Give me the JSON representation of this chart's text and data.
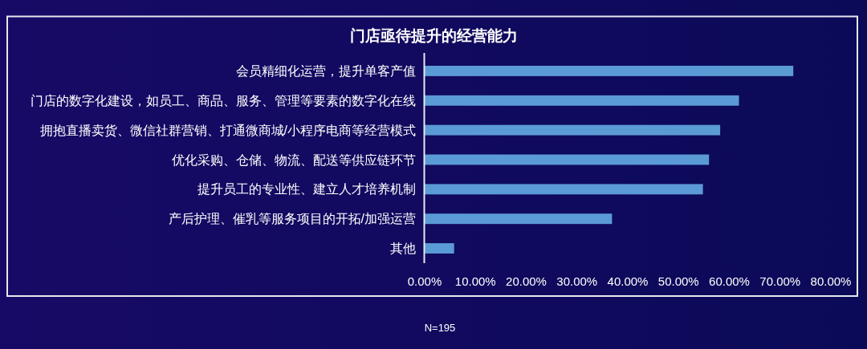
{
  "chart_data": {
    "type": "bar",
    "orientation": "horizontal",
    "title": "门店亟待提升的经营能力",
    "categories": [
      "会员精细化运营，提升单客产值",
      "门店的数字化建设，如员工、商品、服务、管理等要素的数字化在线",
      "拥抱直播卖货、微信社群营销、打通微商城/小程序电商等经营模式",
      "优化采购、仓储、物流、配送等供应链环节",
      "提升员工的专业性、建立人才培养机制",
      "产后护理、催乳等服务项目的开拓/加强运营",
      "其他"
    ],
    "values": [
      72.6,
      61.9,
      58.2,
      56,
      54.8,
      36.9,
      5.8
    ],
    "color": "#5b9bd5",
    "xlim": [
      0,
      80
    ],
    "xticks": [
      {
        "value": 0,
        "label": "0.00%"
      },
      {
        "value": 10,
        "label": "10.00%"
      },
      {
        "value": 20,
        "label": "20.00%"
      },
      {
        "value": 30,
        "label": "30.00%"
      },
      {
        "value": 40,
        "label": "40.00%"
      },
      {
        "value": 50,
        "label": "50.00%"
      },
      {
        "value": 60,
        "label": "60.00%"
      },
      {
        "value": 70,
        "label": "70.00%"
      },
      {
        "value": 80,
        "label": "80.00%"
      }
    ],
    "annotations": [
      "N=195"
    ]
  }
}
